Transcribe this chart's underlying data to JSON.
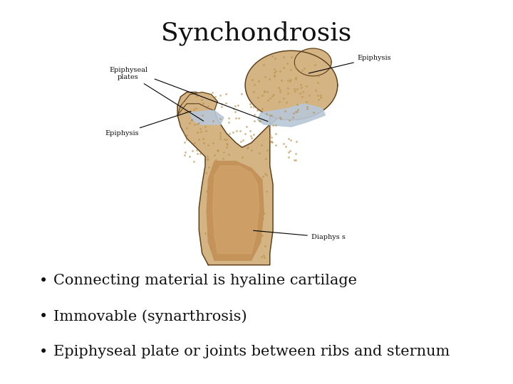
{
  "title": "Synchondrosis",
  "title_fontsize": 26,
  "title_font": "serif",
  "background_color": "#ffffff",
  "bullet_points": [
    "Connecting material is hyaline cartilage",
    "Immovable (synarthrosis)",
    "Epiphyseal plate or joints between ribs and sternum"
  ],
  "bullet_fontsize": 15,
  "bullet_font": "serif",
  "bullet_color": "#111111",
  "bone_color": "#D4B483",
  "bone_light": "#E8CFA0",
  "bone_dark": "#B8904A",
  "marrow_color": "#C4935A",
  "marrow_light": "#D4A870",
  "cartilage_color": "#B8C8D8",
  "outline_color": "#5A3C1A",
  "label_fontsize": 7,
  "label_color": "#111111"
}
